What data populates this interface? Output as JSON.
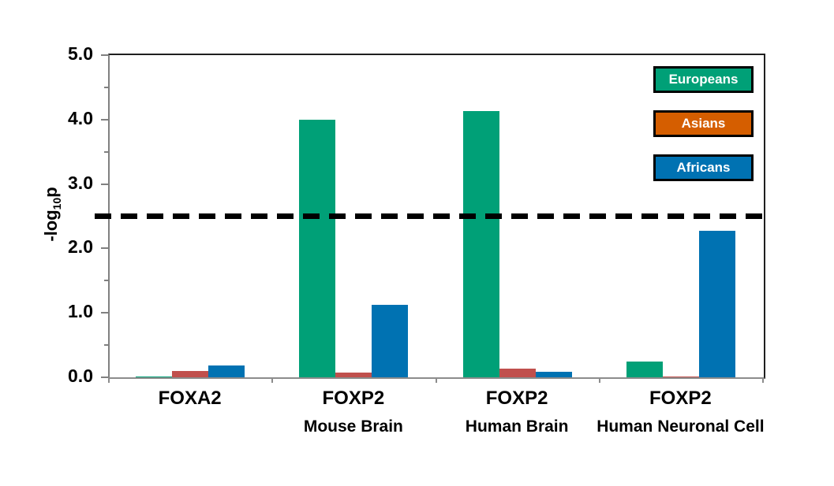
{
  "chart_data": {
    "type": "bar",
    "title": "",
    "ylabel": "-log10p",
    "ylabel_parts": {
      "prefix": "-log",
      "sub": "10",
      "suffix": "p"
    },
    "ylim": [
      0,
      5
    ],
    "y_major_ticks": [
      0.0,
      1.0,
      2.0,
      3.0,
      4.0,
      5.0
    ],
    "y_major_tick_labels": [
      "0.0",
      "1.0",
      "2.0",
      "3.0",
      "4.0",
      "5.0"
    ],
    "y_minor_ticks": [
      0.5,
      1.5,
      2.5,
      3.5,
      4.5
    ],
    "grid": false,
    "legend_position": "top-right",
    "threshold_line": {
      "value": 2.5,
      "style": "dashed",
      "color": "#000000"
    },
    "categories": [
      {
        "label": "FOXA2",
        "sublabel": ""
      },
      {
        "label": "FOXP2",
        "sublabel": "Mouse Brain"
      },
      {
        "label": "FOXP2",
        "sublabel": "Human Brain"
      },
      {
        "label": "FOXP2",
        "sublabel": "Human Neuronal Cell"
      }
    ],
    "series": [
      {
        "name": "Europeans",
        "bar_color": "#00A077",
        "legend_color": "#00A077",
        "values": [
          0.01,
          4.0,
          4.13,
          0.24
        ]
      },
      {
        "name": "Asians",
        "bar_color": "#C0504D",
        "legend_color": "#D55E00",
        "values": [
          0.1,
          0.07,
          0.14,
          0.01
        ]
      },
      {
        "name": "Africans",
        "bar_color": "#0072B2",
        "legend_color": "#0072B2",
        "values": [
          0.18,
          1.13,
          0.08,
          2.27
        ]
      }
    ]
  },
  "colors": {
    "background": "#ffffff",
    "axis": "#808080",
    "plot_border": "#1f1f1f",
    "threshold": "#000000",
    "legend_text": "#ffffff",
    "legend_border": "#000000"
  }
}
